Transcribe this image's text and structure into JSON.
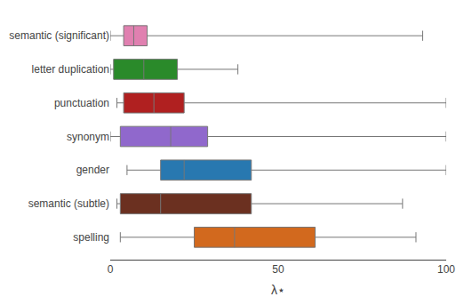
{
  "chart_data": {
    "type": "box",
    "orientation": "horizontal",
    "categories": [
      "semantic (significant)",
      "letter duplication",
      "punctuation",
      "synonym",
      "gender",
      "semantic (subtle)",
      "spelling"
    ],
    "values": [
      {
        "whislo": 0,
        "q1": 4,
        "med": 7,
        "q3": 11,
        "whishi": 93
      },
      {
        "whislo": 0,
        "q1": 1,
        "med": 10,
        "q3": 20,
        "whishi": 38
      },
      {
        "whislo": 2,
        "q1": 4,
        "med": 13,
        "q3": 22,
        "whishi": 100
      },
      {
        "whislo": 0,
        "q1": 3,
        "med": 18,
        "q3": 29,
        "whishi": 100
      },
      {
        "whislo": 5,
        "q1": 15,
        "med": 22,
        "q3": 42,
        "whishi": 100
      },
      {
        "whislo": 2,
        "q1": 3,
        "med": 15,
        "q3": 42,
        "whishi": 87
      },
      {
        "whislo": 3,
        "q1": 25,
        "med": 37,
        "q3": 61,
        "whishi": 91
      }
    ],
    "colors": [
      "#e080b0",
      "#2a8a2a",
      "#b02020",
      "#9068cc",
      "#2878b0",
      "#6b3020",
      "#d2691e"
    ],
    "xlabel": "λ⋆",
    "xlim": [
      0,
      100
    ],
    "xticks": [
      0,
      50,
      100
    ],
    "grid": false
  }
}
